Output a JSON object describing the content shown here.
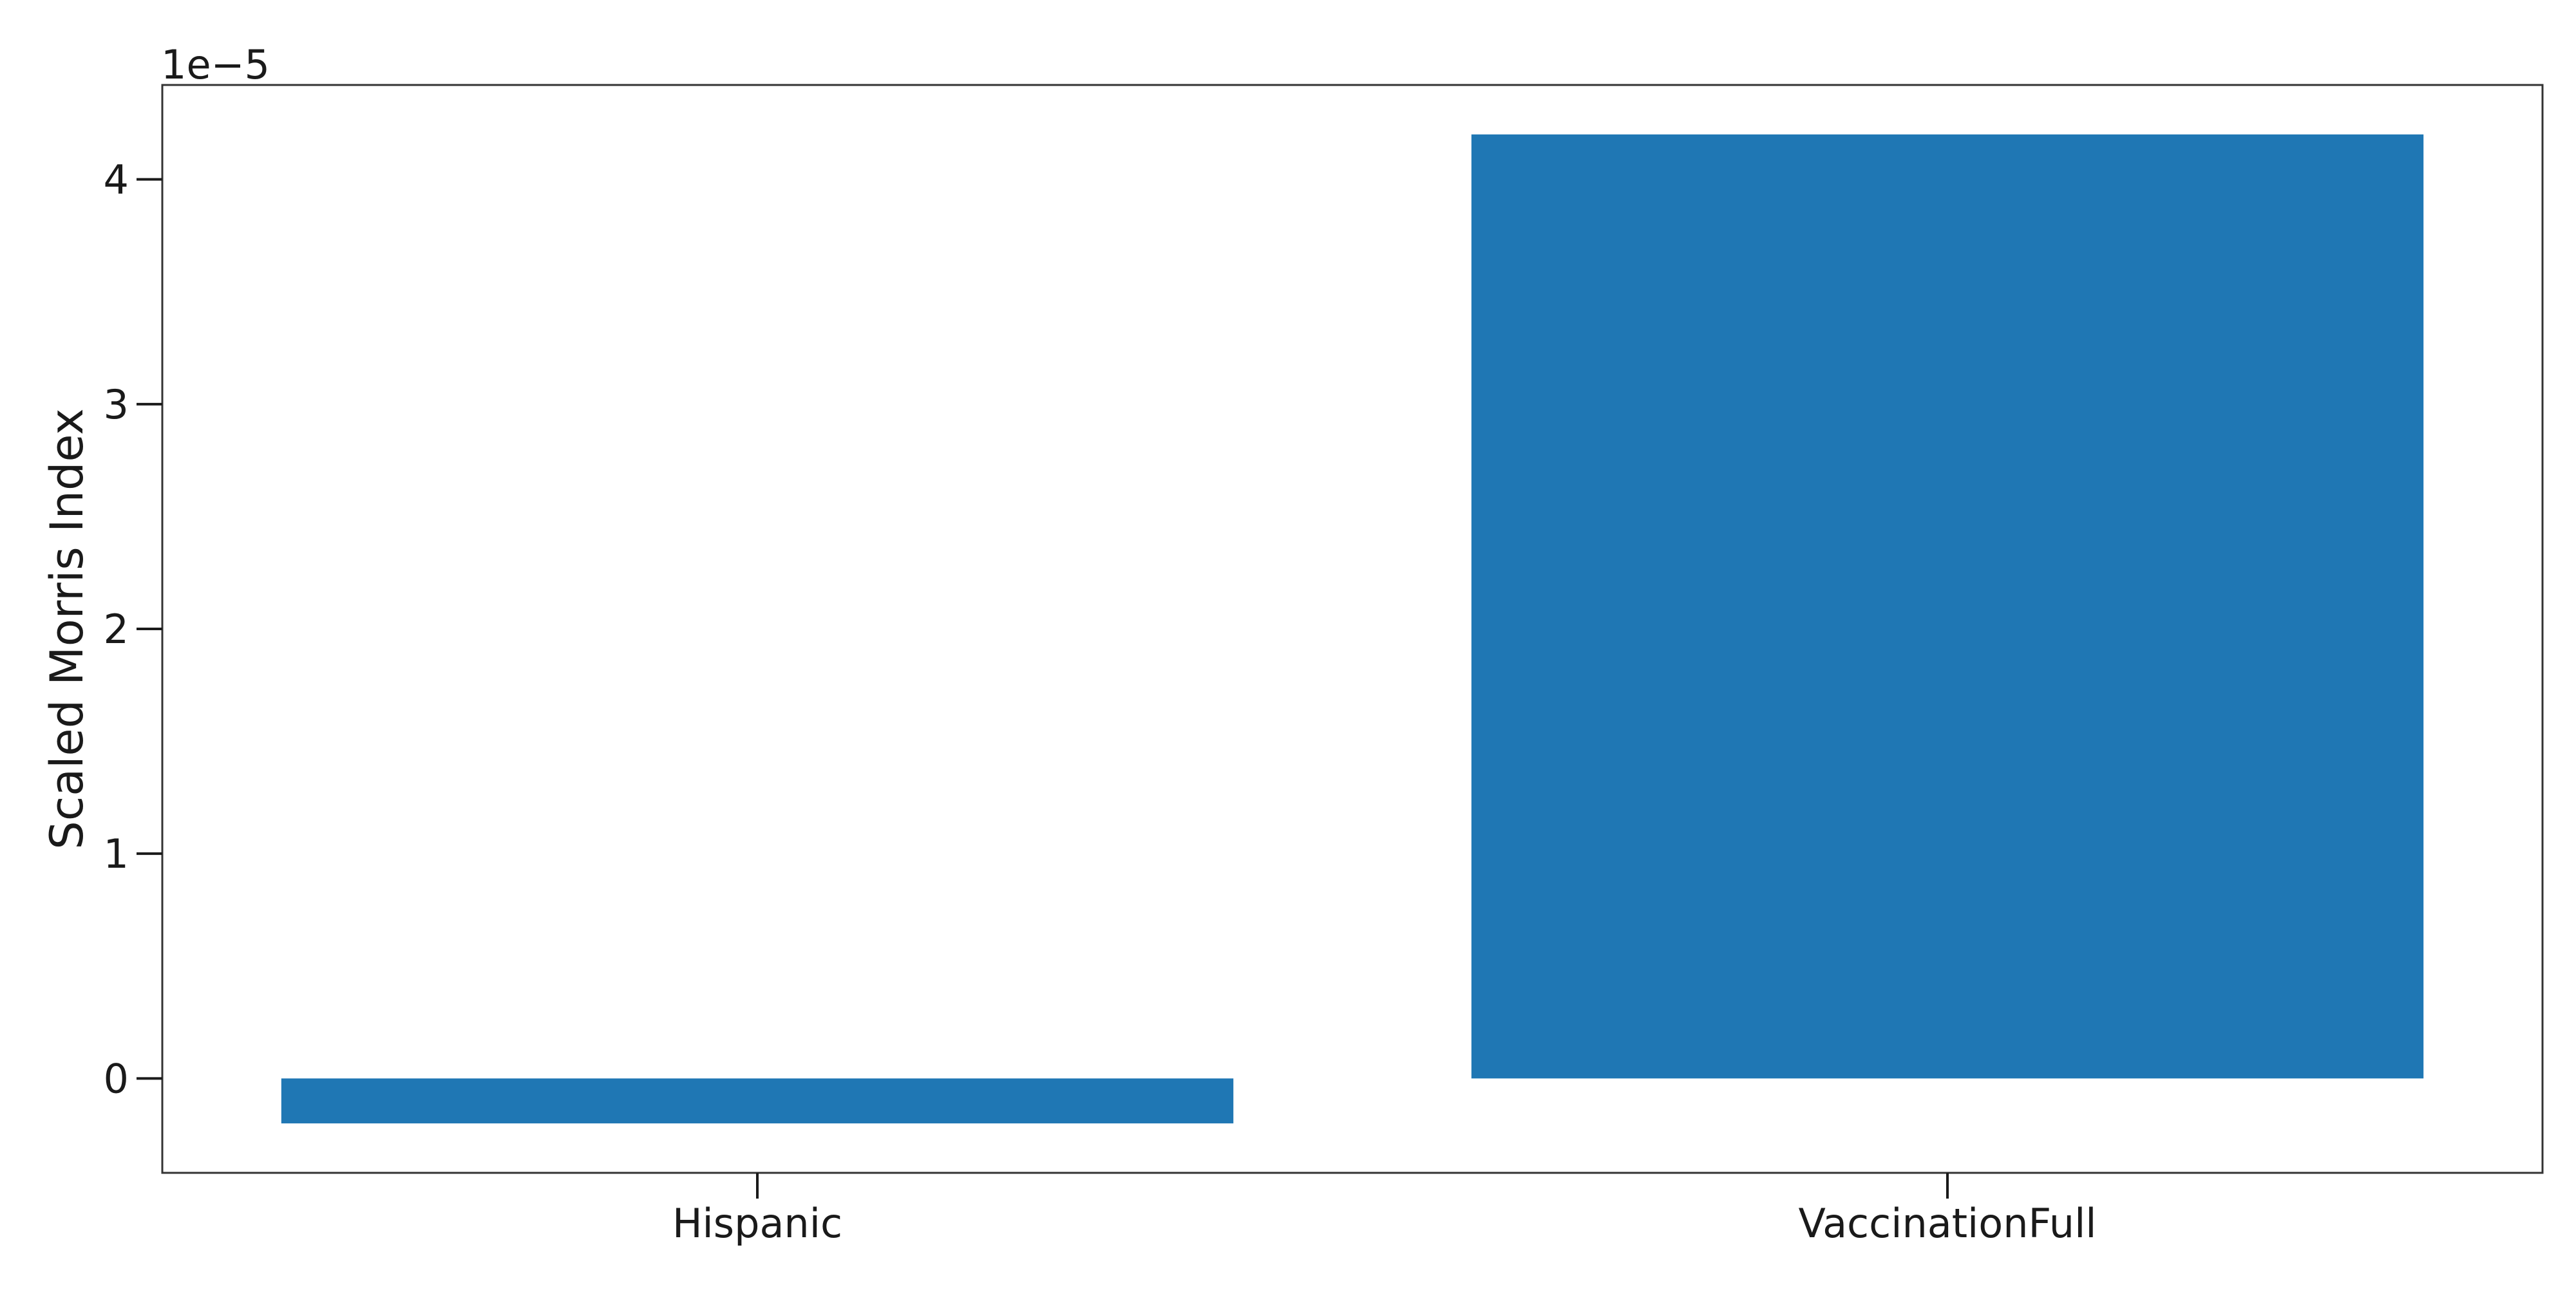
{
  "chart_data": {
    "type": "bar",
    "categories": [
      "Hispanic",
      "VaccinationFull"
    ],
    "values": [
      -2e-06,
      4.2e-05
    ],
    "xlabel": "",
    "ylabel": "Scaled Morris Index",
    "ylim": [
      -4.2e-06,
      4.42e-05
    ],
    "yticks": [
      0,
      1e-05,
      2e-05,
      3e-05,
      4e-05
    ],
    "ytick_labels": [
      "0",
      "1",
      "2",
      "3",
      "4"
    ],
    "offset_label": "1e−5",
    "bar_color": "#1f77b4",
    "grid": false,
    "legend": "none"
  }
}
